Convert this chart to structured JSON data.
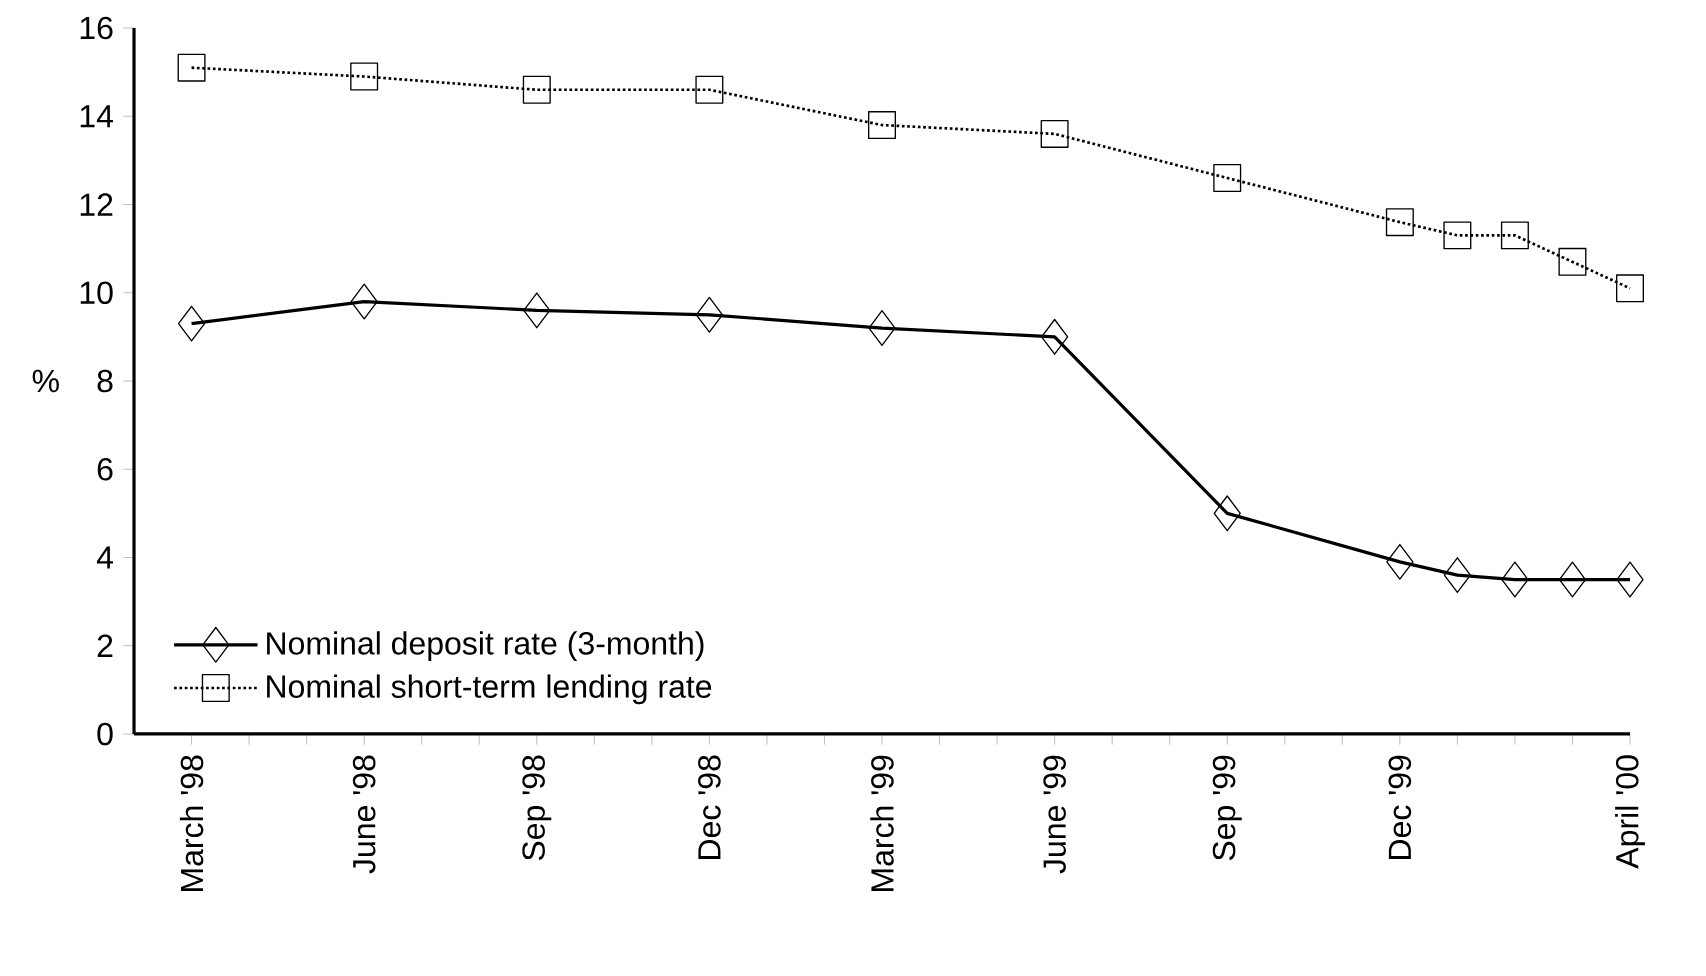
{
  "chart_data": {
    "type": "line",
    "ylabel": "%",
    "x": [
      "1998-03",
      "1998-06",
      "1998-09",
      "1998-12",
      "1999-03",
      "1999-06",
      "1999-09",
      "1999-12",
      "2000-01",
      "2000-02",
      "2000-03",
      "2000-04"
    ],
    "series": [
      {
        "name": "Nominal deposit rate (3-month)",
        "color": "#000000",
        "marker": "diamond",
        "line_style": "solid",
        "values": [
          9.3,
          9.8,
          9.6,
          9.5,
          9.2,
          9.0,
          5.0,
          3.9,
          3.6,
          3.5,
          3.5,
          3.5
        ]
      },
      {
        "name": "Nominal short-term lending rate",
        "color": "#000000",
        "marker": "square",
        "line_style": "dotted",
        "values": [
          15.1,
          14.9,
          14.6,
          14.6,
          13.8,
          13.6,
          12.6,
          11.6,
          11.3,
          11.3,
          10.7,
          10.1
        ]
      }
    ],
    "xlim": [
      "1998-02",
      "2000-04"
    ],
    "xticks": [
      {
        "value": "1998-03",
        "label": "March '98"
      },
      {
        "value": "1998-04",
        "label": null
      },
      {
        "value": "1998-05",
        "label": null
      },
      {
        "value": "1998-06",
        "label": "June '98"
      },
      {
        "value": "1998-07",
        "label": null
      },
      {
        "value": "1998-08",
        "label": null
      },
      {
        "value": "1998-09",
        "label": "Sep '98"
      },
      {
        "value": "1998-10",
        "label": null
      },
      {
        "value": "1998-11",
        "label": null
      },
      {
        "value": "1998-12",
        "label": "Dec '98"
      },
      {
        "value": "1999-01",
        "label": null
      },
      {
        "value": "1999-02",
        "label": null
      },
      {
        "value": "1999-03",
        "label": "March '99"
      },
      {
        "value": "1999-04",
        "label": null
      },
      {
        "value": "1999-05",
        "label": null
      },
      {
        "value": "1999-06",
        "label": "June '99"
      },
      {
        "value": "1999-07",
        "label": null
      },
      {
        "value": "1999-08",
        "label": null
      },
      {
        "value": "1999-09",
        "label": "Sep '99"
      },
      {
        "value": "1999-10",
        "label": null
      },
      {
        "value": "1999-11",
        "label": null
      },
      {
        "value": "1999-12",
        "label": "Dec '99"
      },
      {
        "value": "2000-01",
        "label": null
      },
      {
        "value": "2000-02",
        "label": null
      },
      {
        "value": "2000-03",
        "label": null
      },
      {
        "value": "2000-04",
        "label": "April '00"
      }
    ],
    "ylim": [
      0,
      16
    ],
    "yticks": [
      0,
      2,
      4,
      6,
      8,
      10,
      12,
      14,
      16
    ],
    "grid": false,
    "legend": "bottom left"
  }
}
